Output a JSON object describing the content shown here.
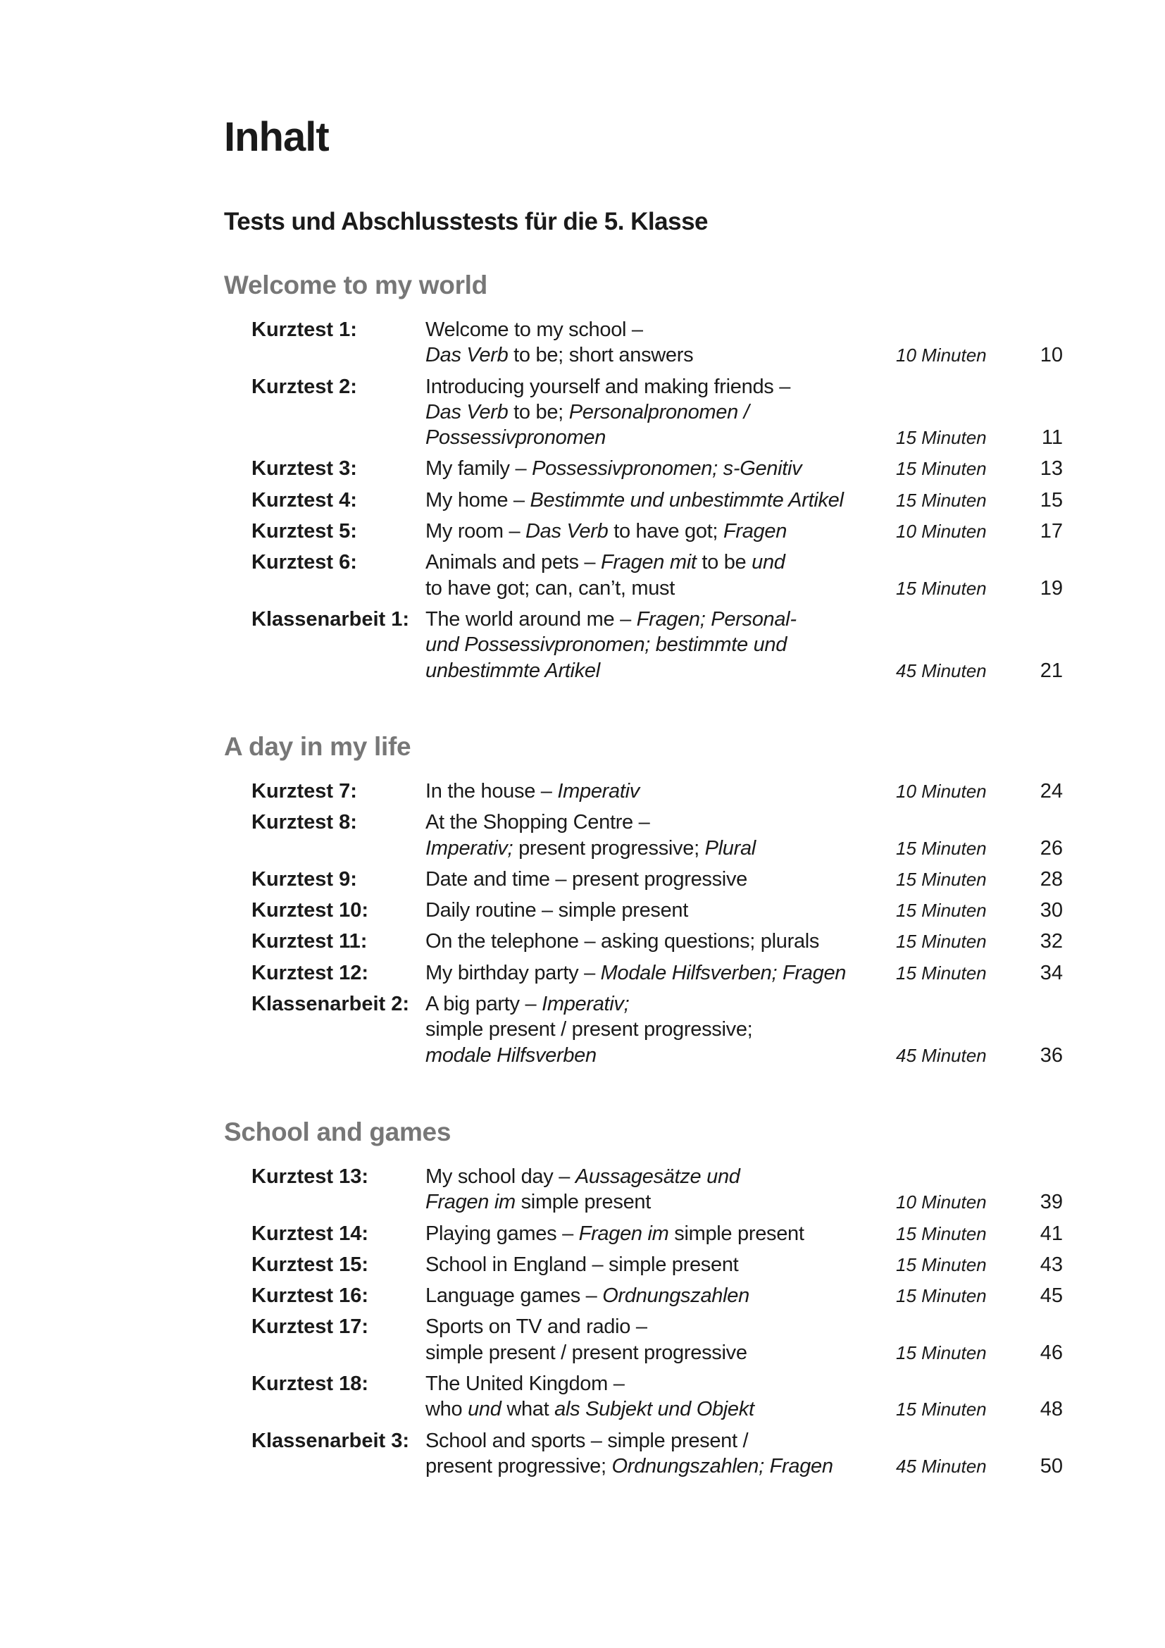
{
  "title": "Inhalt",
  "subtitle": "Tests und Abschlusstests für die 5. Klasse",
  "colors": {
    "text": "#1a1a1a",
    "section_heading": "#777777"
  },
  "sections": [
    {
      "heading": "Welcome to my world",
      "entries": [
        {
          "label": "Kurztest 1:",
          "lines": [
            [
              {
                "t": "Welcome to my school –"
              }
            ],
            [
              {
                "t": "Das Verb",
                "i": true
              },
              {
                "t": " to be; short answers"
              }
            ]
          ],
          "minutes": "10 Minuten",
          "page": "10"
        },
        {
          "label": "Kurztest 2:",
          "lines": [
            [
              {
                "t": "Introducing yourself and making friends –"
              }
            ],
            [
              {
                "t": "Das Verb",
                "i": true
              },
              {
                "t": " to be; "
              },
              {
                "t": "Personalpronomen /",
                "i": true
              }
            ],
            [
              {
                "t": "Possessivpronomen",
                "i": true
              }
            ]
          ],
          "minutes": "15 Minuten",
          "page": "11"
        },
        {
          "label": "Kurztest 3:",
          "lines": [
            [
              {
                "t": "My family – "
              },
              {
                "t": "Possessivpronomen; s-Genitiv",
                "i": true
              }
            ]
          ],
          "minutes": "15 Minuten",
          "page": "13"
        },
        {
          "label": "Kurztest 4:",
          "lines": [
            [
              {
                "t": "My home – "
              },
              {
                "t": "Bestimmte und unbestimmte Artikel",
                "i": true
              }
            ]
          ],
          "minutes": "15 Minuten",
          "page": "15"
        },
        {
          "label": "Kurztest 5:",
          "lines": [
            [
              {
                "t": "My room – "
              },
              {
                "t": "Das Verb",
                "i": true
              },
              {
                "t": " to have got; "
              },
              {
                "t": "Fragen",
                "i": true
              }
            ]
          ],
          "minutes": "10 Minuten",
          "page": "17"
        },
        {
          "label": "Kurztest 6:",
          "lines": [
            [
              {
                "t": "Animals and pets – "
              },
              {
                "t": "Fragen mit",
                "i": true
              },
              {
                "t": " to be "
              },
              {
                "t": "und",
                "i": true
              }
            ],
            [
              {
                "t": "to have got; can, can’t, must"
              }
            ]
          ],
          "minutes": "15 Minuten",
          "page": "19"
        },
        {
          "label": "Klassenarbeit 1:",
          "lines": [
            [
              {
                "t": "The world around me – "
              },
              {
                "t": "Fragen; Personal-",
                "i": true
              }
            ],
            [
              {
                "t": "und Possessivpronomen; bestimmte und",
                "i": true
              }
            ],
            [
              {
                "t": "unbestimmte Artikel",
                "i": true
              }
            ]
          ],
          "minutes": "45 Minuten",
          "page": "21"
        }
      ]
    },
    {
      "heading": "A day in my life",
      "entries": [
        {
          "label": "Kurztest 7:",
          "lines": [
            [
              {
                "t": "In the house – "
              },
              {
                "t": "Imperativ",
                "i": true
              }
            ]
          ],
          "minutes": "10 Minuten",
          "page": "24"
        },
        {
          "label": "Kurztest 8:",
          "lines": [
            [
              {
                "t": "At the Shopping Centre –"
              }
            ],
            [
              {
                "t": "Imperativ;",
                "i": true
              },
              {
                "t": " present progressive; "
              },
              {
                "t": "Plural",
                "i": true
              }
            ]
          ],
          "minutes": "15 Minuten",
          "page": "26"
        },
        {
          "label": "Kurztest 9:",
          "lines": [
            [
              {
                "t": "Date and time – present progressive"
              }
            ]
          ],
          "minutes": "15 Minuten",
          "page": "28"
        },
        {
          "label": "Kurztest 10:",
          "lines": [
            [
              {
                "t": "Daily routine – simple present"
              }
            ]
          ],
          "minutes": "15 Minuten",
          "page": "30"
        },
        {
          "label": "Kurztest 11:",
          "lines": [
            [
              {
                "t": "On the telephone – asking questions; plurals"
              }
            ]
          ],
          "minutes": "15 Minuten",
          "page": "32"
        },
        {
          "label": "Kurztest 12:",
          "lines": [
            [
              {
                "t": "My birthday party – "
              },
              {
                "t": "Modale Hilfsverben; Fragen",
                "i": true
              }
            ]
          ],
          "minutes": "15 Minuten",
          "page": "34"
        },
        {
          "label": "Klassenarbeit 2:",
          "lines": [
            [
              {
                "t": "A big party – "
              },
              {
                "t": "Imperativ;",
                "i": true
              }
            ],
            [
              {
                "t": "simple present / present progressive;"
              }
            ],
            [
              {
                "t": "modale Hilfsverben",
                "i": true
              }
            ]
          ],
          "minutes": "45 Minuten",
          "page": "36"
        }
      ]
    },
    {
      "heading": "School and games",
      "entries": [
        {
          "label": "Kurztest 13:",
          "lines": [
            [
              {
                "t": "My school day – "
              },
              {
                "t": "Aussagesätze und",
                "i": true
              }
            ],
            [
              {
                "t": "Fragen im",
                "i": true
              },
              {
                "t": " simple present"
              }
            ]
          ],
          "minutes": "10 Minuten",
          "page": "39"
        },
        {
          "label": "Kurztest 14:",
          "lines": [
            [
              {
                "t": "Playing games – "
              },
              {
                "t": "Fragen im",
                "i": true
              },
              {
                "t": " simple present"
              }
            ]
          ],
          "minutes": "15 Minuten",
          "page": "41"
        },
        {
          "label": "Kurztest 15:",
          "lines": [
            [
              {
                "t": "School in England – simple present"
              }
            ]
          ],
          "minutes": "15 Minuten",
          "page": "43"
        },
        {
          "label": "Kurztest 16:",
          "lines": [
            [
              {
                "t": "Language games – "
              },
              {
                "t": "Ordnungszahlen",
                "i": true
              }
            ]
          ],
          "minutes": "15 Minuten",
          "page": "45"
        },
        {
          "label": "Kurztest 17:",
          "lines": [
            [
              {
                "t": "Sports on TV and radio –"
              }
            ],
            [
              {
                "t": "simple present / present progressive"
              }
            ]
          ],
          "minutes": "15 Minuten",
          "page": "46"
        },
        {
          "label": "Kurztest 18:",
          "lines": [
            [
              {
                "t": "The United Kingdom –"
              }
            ],
            [
              {
                "t": "who "
              },
              {
                "t": "und",
                "i": true
              },
              {
                "t": " what "
              },
              {
                "t": "als Subjekt und Objekt",
                "i": true
              }
            ]
          ],
          "minutes": "15 Minuten",
          "page": "48"
        },
        {
          "label": "Klassenarbeit 3:",
          "lines": [
            [
              {
                "t": "School and sports – simple present /"
              }
            ],
            [
              {
                "t": "present progressive; "
              },
              {
                "t": "Ordnungszahlen; Fragen",
                "i": true
              }
            ]
          ],
          "minutes": "45 Minuten",
          "page": "50"
        }
      ]
    }
  ]
}
